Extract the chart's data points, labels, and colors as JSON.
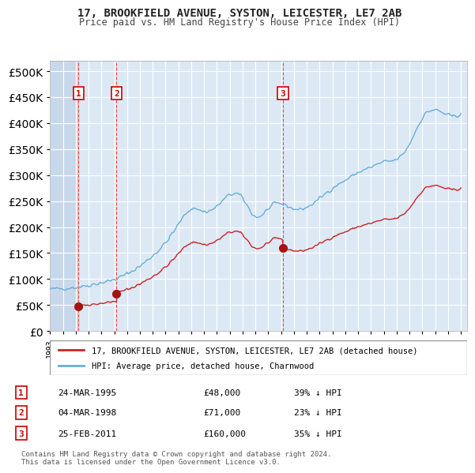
{
  "title": "17, BROOKFIELD AVENUE, SYSTON, LEICESTER, LE7 2AB",
  "subtitle": "Price paid vs. HM Land Registry's House Price Index (HPI)",
  "footer": "Contains HM Land Registry data © Crown copyright and database right 2024.\nThis data is licensed under the Open Government Licence v3.0.",
  "legend_line1": "17, BROOKFIELD AVENUE, SYSTON, LEICESTER, LE7 2AB (detached house)",
  "legend_line2": "HPI: Average price, detached house, Charnwood",
  "sales": [
    {
      "num": 1,
      "date": "24-MAR-1995",
      "price": 48000,
      "pct": "39%",
      "dir": "↓",
      "x_year": 1995.22
    },
    {
      "num": 2,
      "date": "04-MAR-1998",
      "price": 71000,
      "pct": "23%",
      "dir": "↓",
      "x_year": 1998.17
    },
    {
      "num": 3,
      "date": "25-FEB-2011",
      "price": 160000,
      "pct": "35%",
      "dir": "↓",
      "x_year": 2011.15
    }
  ],
  "ylim": [
    0,
    520000
  ],
  "xlim_start": 1993.0,
  "xlim_end": 2025.5,
  "background_chart": "#dce9f5",
  "background_hatch": "#c8d8eb",
  "grid_color": "#ffffff",
  "vline_color": "#ff4444",
  "hpi_color": "#6aaed6",
  "red_line_color": "#cc2222",
  "sale_dot_color": "#aa1111",
  "title_color": "#222222",
  "subtitle_color": "#444444",
  "footer_color": "#555555"
}
